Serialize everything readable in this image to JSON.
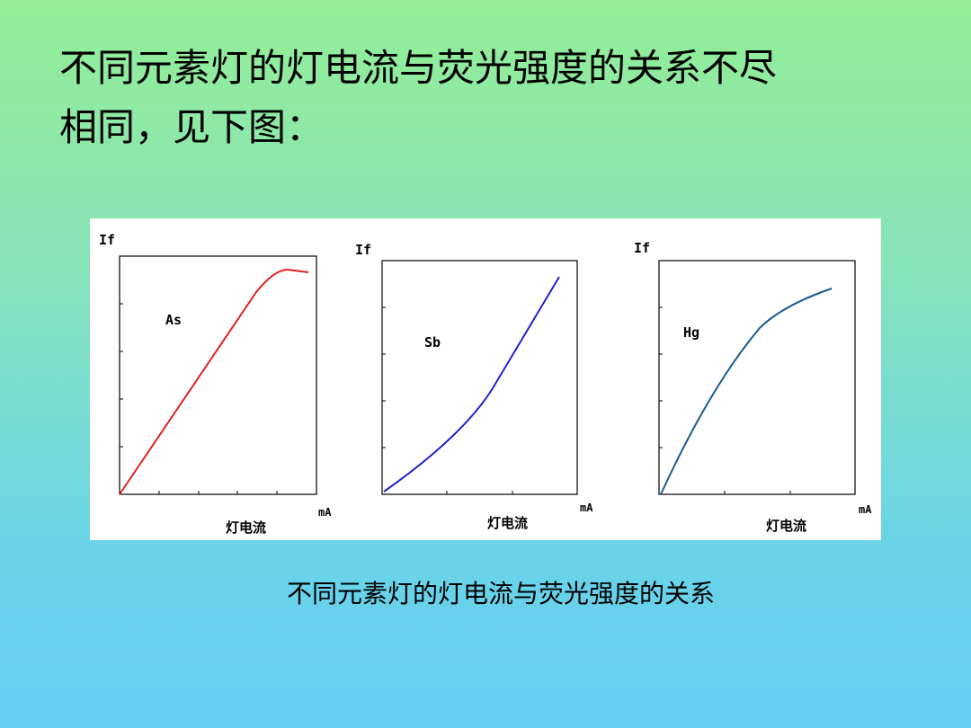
{
  "header": {
    "title_lines": [
      "不同元素灯的灯电流与荧光强度的关系不尽",
      "相同，见下图："
    ]
  },
  "panels": [
    {
      "y_label": "If",
      "curve_label": "As",
      "x_unit": "mA",
      "x_label": "灯电流"
    },
    {
      "y_label": "If",
      "curve_label": "Sb",
      "x_unit": "mA",
      "x_label": "灯电流"
    },
    {
      "y_label": "If",
      "curve_label": "Hg",
      "x_unit": "mA",
      "x_label": "灯电流"
    }
  ],
  "caption": "不同元素灯的灯电流与荧光强度的关系"
}
